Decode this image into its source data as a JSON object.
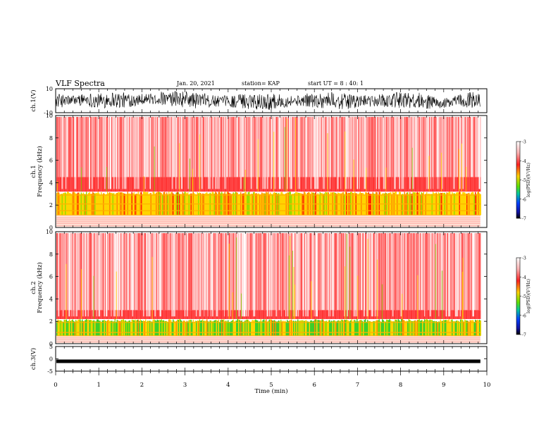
{
  "header": {
    "title": "VLF Spectra",
    "date": "Jan. 20, 2021",
    "station": "station= KAP",
    "start": "start  UT =  8 : 40: 1"
  },
  "chart_data": [
    {
      "type": "line",
      "ylabel": "ch.1(V)",
      "xlim": [
        0,
        10
      ],
      "ylim": [
        -10,
        10
      ],
      "yticks": [
        "10",
        "-10"
      ],
      "description_data": "broadband waveform spanning roughly -8 to 8 V over the record",
      "data_end_min": 9.85
    },
    {
      "type": "heatmap",
      "ylabel": "ch.1\nFrequency (kHz)",
      "xlim": [
        0,
        10
      ],
      "ylim": [
        0,
        10
      ],
      "yticks": [
        "0",
        "2",
        "4",
        "6",
        "8",
        "10"
      ],
      "data_end_min": 9.85,
      "colorbar": {
        "label": "log(PSD)(V²/Hz)",
        "range": [
          -7,
          -3
        ],
        "ticks": [
          "-3",
          "-4",
          "-5",
          "-6",
          "-7"
        ]
      }
    },
    {
      "type": "heatmap",
      "ylabel": "ch.2\nFrequency (kHz)",
      "xlim": [
        0,
        10
      ],
      "ylim": [
        0,
        10
      ],
      "yticks": [
        "0",
        "2",
        "4",
        "6",
        "8",
        "10"
      ],
      "data_end_min": 9.85,
      "colorbar": {
        "label": "log(PSD)(V²/Hz)",
        "range": [
          -7,
          -3
        ],
        "ticks": [
          "-3",
          "-4",
          "-5",
          "-6",
          "-7"
        ]
      }
    },
    {
      "type": "line",
      "ylabel": "ch.3(V)",
      "xlim": [
        0,
        10
      ],
      "ylim": [
        -5,
        5
      ],
      "yticks": [
        "5",
        "0",
        "-5"
      ],
      "level_value": -1.0,
      "data_end_min": 9.85
    }
  ],
  "xaxis": {
    "label": "Time (min)",
    "ticks": [
      "0",
      "1",
      "2",
      "3",
      "4",
      "5",
      "6",
      "7",
      "8",
      "9",
      "10"
    ]
  }
}
